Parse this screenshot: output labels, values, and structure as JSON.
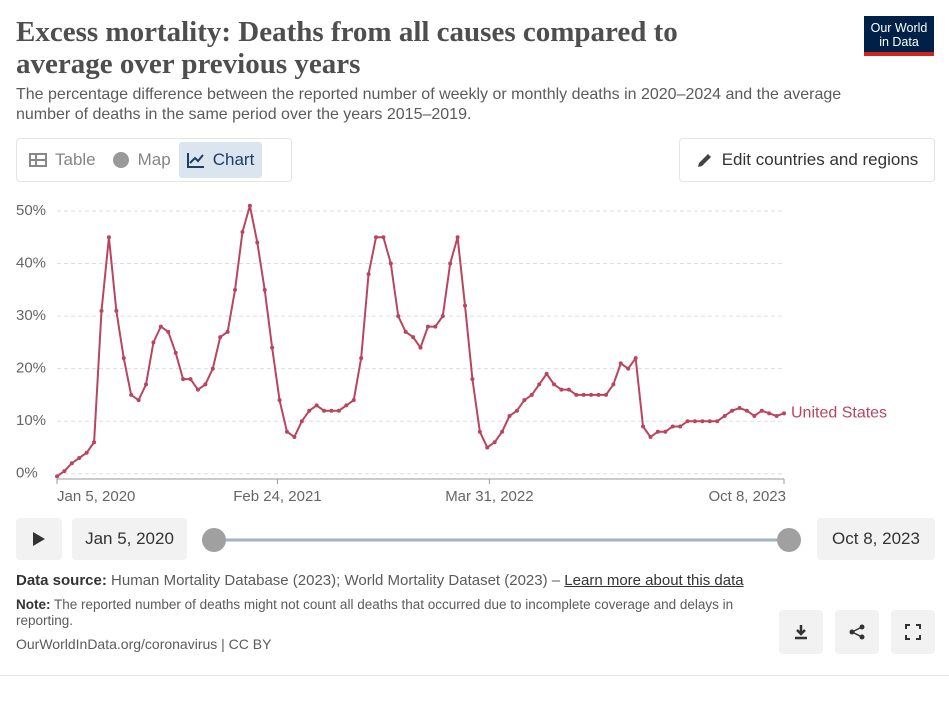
{
  "logo": [
    "Our World",
    "in Data"
  ],
  "tabs": [
    "Table",
    "Map",
    "Chart"
  ],
  "edit_button": "Edit countries and regions",
  "timeline": {
    "start": "Jan 5, 2020",
    "end": "Oct 8, 2023"
  },
  "source": {
    "label": "Data source:",
    "text": "Human Mortality Database (2023); World Mortality Dataset (2023) – ",
    "link": "Learn more about this data"
  },
  "note": {
    "label": "Note:",
    "text": "The reported number of deaths might not count all deaths that occurred due to incomplete coverage and delays in reporting."
  },
  "footer": "OurWorldInData.org/coronavirus | CC BY",
  "chart_data": {
    "type": "line",
    "title": "Excess mortality: Deaths from all causes compared to average over previous years",
    "subtitle": "The percentage difference between the reported number of weekly or monthly deaths in 2020–2024 and the average number of deaths in the same period over the years 2015–2019.",
    "x": [
      "2020-01-05",
      "2020-01-19",
      "2020-02-02",
      "2020-02-16",
      "2020-03-01",
      "2020-03-15",
      "2020-03-29",
      "2020-04-12",
      "2020-04-26",
      "2020-05-10",
      "2020-05-24",
      "2020-06-07",
      "2020-06-21",
      "2020-07-05",
      "2020-07-19",
      "2020-08-02",
      "2020-08-16",
      "2020-08-30",
      "2020-09-13",
      "2020-09-27",
      "2020-10-11",
      "2020-10-25",
      "2020-11-08",
      "2020-11-22",
      "2020-12-06",
      "2020-12-20",
      "2021-01-03",
      "2021-01-17",
      "2021-01-31",
      "2021-02-14",
      "2021-02-28",
      "2021-03-14",
      "2021-03-28",
      "2021-04-11",
      "2021-04-25",
      "2021-05-09",
      "2021-05-23",
      "2021-06-06",
      "2021-06-20",
      "2021-07-04",
      "2021-07-18",
      "2021-08-01",
      "2021-08-15",
      "2021-08-29",
      "2021-09-12",
      "2021-09-26",
      "2021-10-10",
      "2021-10-24",
      "2021-11-07",
      "2021-11-21",
      "2021-12-05",
      "2021-12-19",
      "2022-01-02",
      "2022-01-16",
      "2022-01-30",
      "2022-02-13",
      "2022-02-27",
      "2022-03-13",
      "2022-03-27",
      "2022-04-10",
      "2022-04-24",
      "2022-05-08",
      "2022-05-22",
      "2022-06-05",
      "2022-06-19",
      "2022-07-03",
      "2022-07-17",
      "2022-07-31",
      "2022-08-14",
      "2022-08-28",
      "2022-09-11",
      "2022-09-25",
      "2022-10-09",
      "2022-10-23",
      "2022-11-06",
      "2022-11-20",
      "2022-12-04",
      "2022-12-18",
      "2023-01-01",
      "2023-01-15",
      "2023-01-29",
      "2023-02-12",
      "2023-02-26",
      "2023-03-12",
      "2023-03-26",
      "2023-04-09",
      "2023-04-23",
      "2023-05-07",
      "2023-05-21",
      "2023-06-04",
      "2023-06-18",
      "2023-07-02",
      "2023-07-16",
      "2023-07-30",
      "2023-08-13",
      "2023-08-27",
      "2023-09-10",
      "2023-09-24",
      "2023-10-08"
    ],
    "series": [
      {
        "name": "United States",
        "color": "#b8465f",
        "values": [
          -0.5,
          0.5,
          2,
          3,
          4,
          6,
          31,
          45,
          31,
          22,
          15,
          14,
          17,
          25,
          28,
          27,
          23,
          18,
          18,
          16,
          17,
          20,
          26,
          27,
          35,
          46,
          51,
          44,
          35,
          24,
          14,
          8,
          7,
          10,
          12,
          13,
          12,
          12,
          12,
          13,
          14,
          22,
          38,
          45,
          45,
          40,
          30,
          27,
          26,
          24,
          28,
          28,
          30,
          40,
          45,
          32,
          18,
          8,
          5,
          6,
          8,
          11,
          12,
          14,
          15,
          17,
          19,
          17,
          16,
          16,
          15,
          15,
          15,
          15,
          15,
          17,
          21,
          20,
          22,
          9,
          7,
          8,
          8,
          9,
          9,
          10,
          10,
          10,
          10,
          10,
          11,
          12,
          12.5,
          12,
          11,
          12,
          11.5,
          11,
          11.5
        ]
      }
    ],
    "xlim": [
      "2020-01-05",
      "2023-10-08"
    ],
    "xticks": [
      {
        "value": "2020-01-05",
        "label": "Jan 5, 2020"
      },
      {
        "value": "2021-02-24",
        "label": "Feb 24, 2021"
      },
      {
        "value": "2022-03-31",
        "label": "Mar 31, 2022"
      },
      {
        "value": "2023-10-08",
        "label": "Oct 8, 2023"
      }
    ],
    "ylim": [
      -1,
      52
    ],
    "yticks": [
      {
        "value": 0,
        "label": "0%"
      },
      {
        "value": 10,
        "label": "10%"
      },
      {
        "value": 20,
        "label": "20%"
      },
      {
        "value": 30,
        "label": "30%"
      },
      {
        "value": 40,
        "label": "40%"
      },
      {
        "value": 50,
        "label": "50%"
      }
    ],
    "grid": true
  }
}
